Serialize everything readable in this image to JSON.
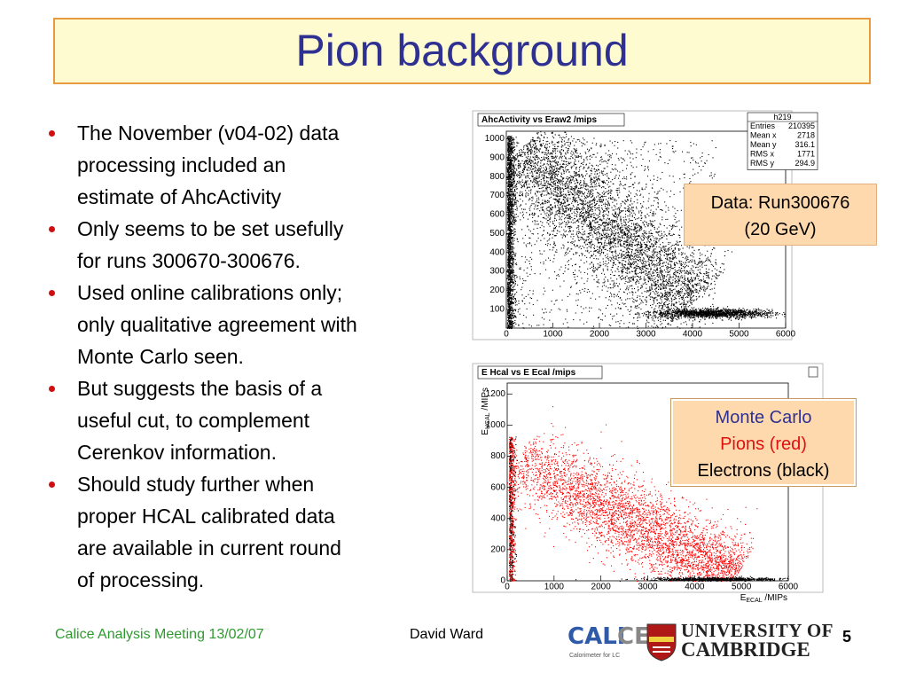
{
  "title": "Pion background",
  "bullets": [
    {
      "lines": [
        "The November (v04-02) data",
        "processing included an",
        "estimate of AhcActivity"
      ]
    },
    {
      "lines": [
        "Only seems to be set usefully",
        "for runs 300670-300676."
      ]
    },
    {
      "lines": [
        "Used online calibrations only;",
        "only qualitative agreement with",
        "Monte Carlo seen."
      ]
    },
    {
      "lines": [
        "But suggests the basis of a",
        "useful cut, to complement",
        "Cerenkov information."
      ]
    },
    {
      "lines": [
        "Should study further when",
        "proper HCAL calibrated data",
        "are available in current round",
        "of processing."
      ]
    }
  ],
  "chart_data": [
    {
      "type": "scatter",
      "title": "AhcActivity vs Eraw2 /mips",
      "stats": {
        "name": "h219",
        "rows": [
          [
            "Entries",
            "210395"
          ],
          [
            "Mean x",
            "2718"
          ],
          [
            "Mean y",
            "316.1"
          ],
          [
            "RMS x",
            "1771"
          ],
          [
            "RMS y",
            "294.9"
          ]
        ]
      },
      "xlim": [
        0,
        6000
      ],
      "xticks": [
        0,
        1000,
        2000,
        3000,
        4000,
        5000,
        6000
      ],
      "ylim": [
        0,
        1040
      ],
      "yticks": [
        100,
        200,
        300,
        400,
        500,
        600,
        700,
        800,
        900,
        1000
      ]
    },
    {
      "type": "scatter",
      "title": "E Hcal vs E Ecal /mips",
      "xlabel": {
        "main": "E",
        "sub": "ECAL",
        "rest": " /MIPs"
      },
      "ylabel": {
        "main": "E",
        "sub": "HCAL",
        "rest": " /MIPs"
      },
      "xlim": [
        0,
        6000
      ],
      "xticks": [
        0,
        1000,
        2000,
        3000,
        4000,
        5000,
        6000
      ],
      "ylim": [
        0,
        1270
      ],
      "yticks": [
        0,
        200,
        400,
        600,
        800,
        1000,
        1200
      ]
    }
  ],
  "callouts": [
    {
      "lines": [
        "Data: Run300676",
        "(20 GeV)"
      ]
    },
    {
      "lines": [
        "Monte Carlo",
        "Pions (red)",
        "Electrons (black)"
      ]
    }
  ],
  "footer": {
    "meeting": "Calice Analysis Meeting 13/02/07",
    "author": "David Ward",
    "page": "5",
    "calice_logo": {
      "a": "CALI",
      "b": "CE",
      "sub": "Calorimeter for LC"
    },
    "cambridge_logo": {
      "line1": "UNIVERSITY OF",
      "line2": "CAMBRIDGE"
    }
  }
}
